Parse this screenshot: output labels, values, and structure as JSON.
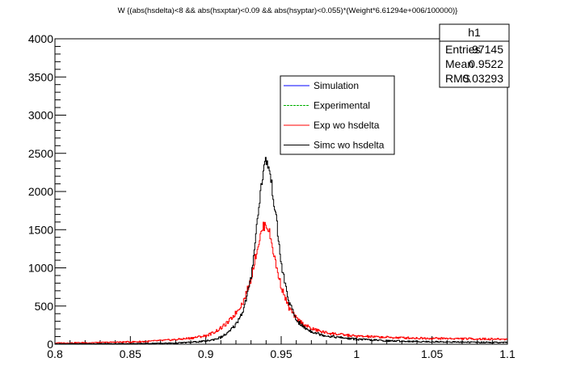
{
  "chart_data": {
    "type": "line",
    "title": "W {(abs(hsdelta)<8 && abs(hsxptar)<0.09 && abs(hsyptar)<0.055)*(Weight*6.61294e+006/100000)}",
    "xlabel": "",
    "ylabel": "",
    "xlim": [
      0.8,
      1.1
    ],
    "ylim": [
      0,
      4000
    ],
    "x_ticks": [
      0.8,
      0.85,
      0.9,
      0.95,
      1.0,
      1.05,
      1.1
    ],
    "x_tick_labels": [
      "0.8",
      "0.85",
      "0.9",
      "0.95",
      "1",
      "1.05",
      "1.1"
    ],
    "y_ticks": [
      0,
      500,
      1000,
      1500,
      2000,
      2500,
      3000,
      3500,
      4000
    ],
    "y_tick_labels": [
      "0",
      "500",
      "1000",
      "1500",
      "2000",
      "2500",
      "3000",
      "3500",
      "4000"
    ],
    "grid": false,
    "legend_position": "upper-center",
    "stats_box": {
      "title": "h1",
      "rows": [
        {
          "label": "Entries",
          "value": "97145"
        },
        {
          "label": "Mean",
          "value": "0.9522"
        },
        {
          "label": "RMS",
          "value": "0.03293"
        }
      ]
    },
    "series": [
      {
        "name": "Simulation",
        "color": "#0000ff",
        "x": [],
        "values": []
      },
      {
        "name": "Experimental",
        "color": "#00b000",
        "x": [],
        "values": []
      },
      {
        "name": "Exp wo hsdelta",
        "color": "#ff0000",
        "x": [
          0.8,
          0.83,
          0.86,
          0.88,
          0.89,
          0.9,
          0.905,
          0.91,
          0.915,
          0.92,
          0.925,
          0.93,
          0.933,
          0.936,
          0.938,
          0.94,
          0.942,
          0.944,
          0.947,
          0.95,
          0.955,
          0.96,
          0.965,
          0.97,
          0.975,
          0.98,
          0.99,
          1.0,
          1.02,
          1.04,
          1.06,
          1.08,
          1.1
        ],
        "values": [
          15,
          22,
          35,
          60,
          80,
          110,
          150,
          210,
          290,
          410,
          560,
          850,
          1150,
          1400,
          1530,
          1580,
          1480,
          1300,
          1000,
          760,
          480,
          340,
          260,
          205,
          175,
          150,
          125,
          105,
          90,
          80,
          75,
          70,
          65
        ]
      },
      {
        "name": "Simc wo hsdelta",
        "color": "#000000",
        "x": [
          0.8,
          0.85,
          0.88,
          0.89,
          0.9,
          0.905,
          0.91,
          0.915,
          0.92,
          0.925,
          0.93,
          0.933,
          0.936,
          0.938,
          0.94,
          0.942,
          0.944,
          0.947,
          0.95,
          0.955,
          0.96,
          0.965,
          0.97,
          0.975,
          0.98,
          0.99,
          1.0,
          1.02,
          1.04,
          1.06,
          1.08,
          1.1
        ],
        "values": [
          5,
          8,
          15,
          25,
          40,
          60,
          90,
          150,
          260,
          450,
          850,
          1400,
          1950,
          2250,
          2420,
          2300,
          2050,
          1600,
          1050,
          560,
          320,
          220,
          170,
          135,
          110,
          85,
          65,
          45,
          35,
          30,
          25,
          22
        ]
      }
    ]
  }
}
